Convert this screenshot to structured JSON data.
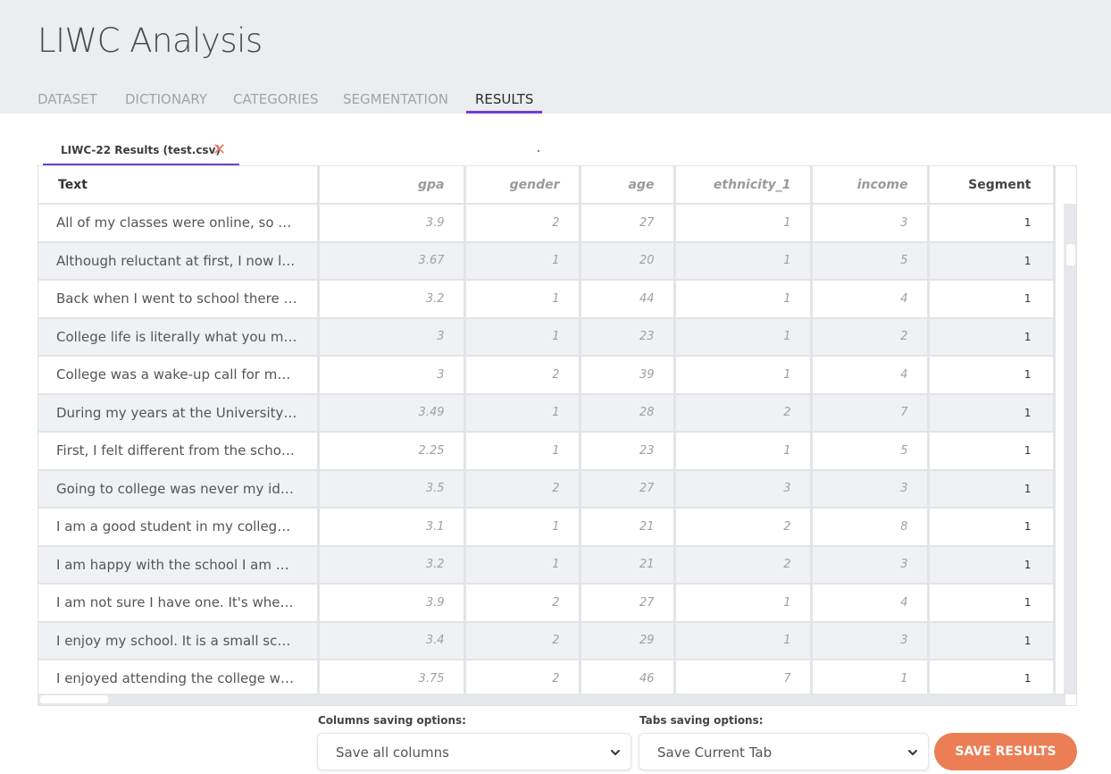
{
  "app": {
    "title": "LIWC Analysis"
  },
  "nav": {
    "tabs": [
      {
        "label": "DATASET"
      },
      {
        "label": "DICTIONARY"
      },
      {
        "label": "CATEGORIES"
      },
      {
        "label": "SEGMENTATION"
      },
      {
        "label": "RESULTS"
      }
    ],
    "active": "RESULTS"
  },
  "result_tab": {
    "label": "LIWC-22 Results (test.csv)",
    "close_icon": "close-icon"
  },
  "table": {
    "columns": [
      "Text",
      "gpa",
      "gender",
      "age",
      "ethnicity_1",
      "income",
      "Segment"
    ],
    "rows": [
      [
        "All of my classes were online, so my ...",
        "3.9",
        "2",
        "27",
        "1",
        "3",
        "1"
      ],
      [
        "Although reluctant at first, I now love ...",
        "3.67",
        "1",
        "20",
        "1",
        "5",
        "1"
      ],
      [
        "Back when I went to school there  th...",
        "3.2",
        "1",
        "44",
        "1",
        "4",
        "1"
      ],
      [
        "College life is literally what you make...",
        "3",
        "1",
        "23",
        "1",
        "2",
        "1"
      ],
      [
        "College was a wake-up call for me.  I ...",
        "3",
        "2",
        "39",
        "1",
        "4",
        "1"
      ],
      [
        "During my years at the University I ha...",
        "3.49",
        "1",
        "28",
        "2",
        "7",
        "1"
      ],
      [
        "First, I felt different from the school. It...",
        "2.25",
        "1",
        "23",
        "1",
        "5",
        "1"
      ],
      [
        "Going to college was never my idea ...",
        "3.5",
        "2",
        "27",
        "3",
        "3",
        "1"
      ],
      [
        "I am a good student in my college. I ...",
        "3.1",
        "1",
        "21",
        "2",
        "8",
        "1"
      ],
      [
        "I am happy with the school I am goin...",
        "3.2",
        "1",
        "21",
        "2",
        "3",
        "1"
      ],
      [
        "I am not sure I have one. It's where I s...",
        "3.9",
        "2",
        "27",
        "1",
        "4",
        "1"
      ],
      [
        "I enjoy my school. It is a small school ...",
        "3.4",
        "2",
        "29",
        "1",
        "3",
        "1"
      ],
      [
        "I enjoyed attending the college when...",
        "3.75",
        "2",
        "46",
        "7",
        "1",
        "1"
      ]
    ]
  },
  "options": {
    "columns_label": "Columns saving options:",
    "columns_value": "Save all columns",
    "tabs_label": "Tabs saving options:",
    "tabs_value": "Save Current Tab",
    "save_label": "SAVE RESULTS"
  },
  "colors": {
    "accent": "#6f3fd1",
    "save_button": "#ec7e55",
    "close_icon": "#e8795a"
  }
}
